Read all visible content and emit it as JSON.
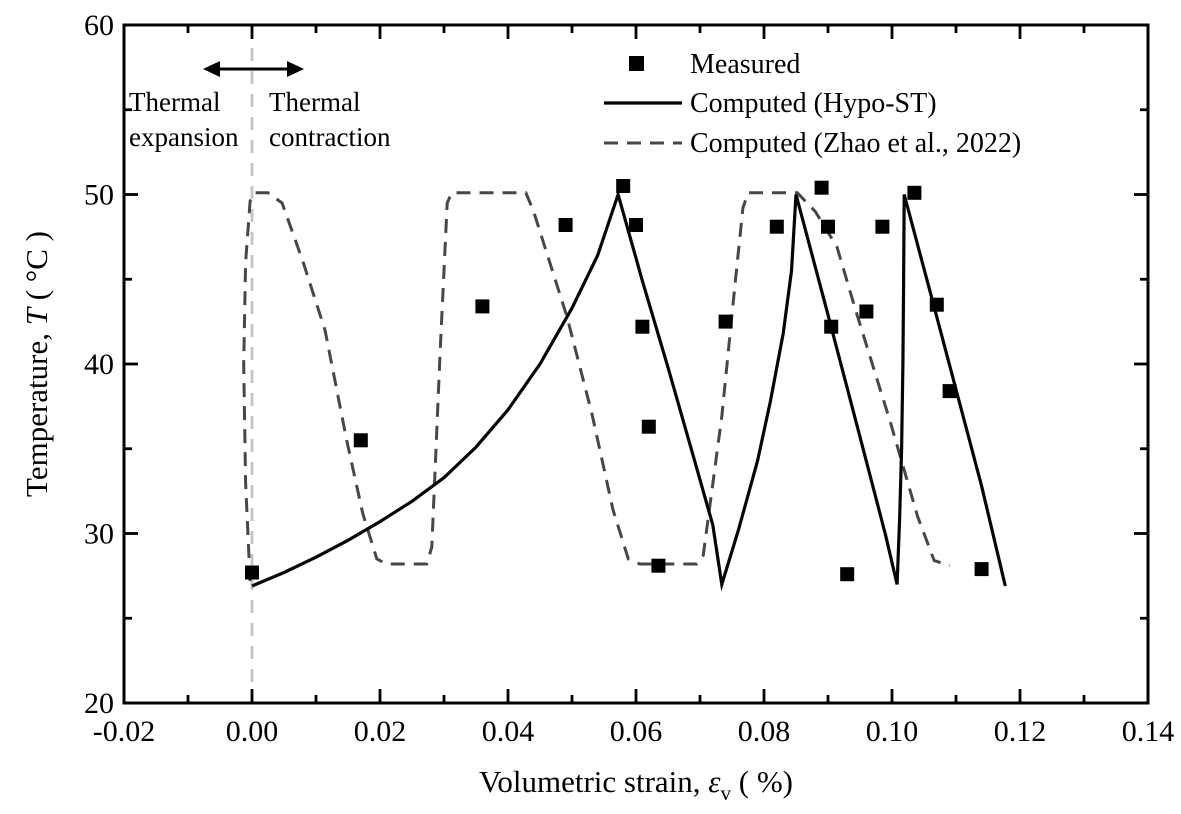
{
  "figure": {
    "background": "#ffffff"
  },
  "chart_data": {
    "type": "line+scatter",
    "title": "",
    "xlabel": {
      "prefix": "Volumetric strain, ",
      "symbol": "ε",
      "subscript": "v",
      "suffix": " ( %)"
    },
    "ylabel": {
      "prefix": "Temperature, ",
      "symbol": "T",
      "suffix": " ( °C )"
    },
    "xlim": [
      -0.02,
      0.14
    ],
    "ylim": [
      20,
      60
    ],
    "xticks": [
      -0.02,
      0.0,
      0.02,
      0.04,
      0.06,
      0.08,
      0.1,
      0.12,
      0.14
    ],
    "xtick_labels": [
      "-0.02",
      "0.00",
      "0.02",
      "0.04",
      "0.06",
      "0.08",
      "0.10",
      "0.12",
      "0.14"
    ],
    "xminor": [
      -0.01,
      0.01,
      0.03,
      0.05,
      0.07,
      0.09,
      0.11,
      0.13
    ],
    "yticks": [
      20,
      30,
      40,
      50,
      60
    ],
    "ytick_labels": [
      "20",
      "30",
      "40",
      "50",
      "60"
    ],
    "yminor": [
      25,
      35,
      45,
      55
    ],
    "grid": false,
    "legend_position": "top-center",
    "reference_line": {
      "x": 0.0,
      "color": "#c4c4c4",
      "style": "dashed"
    },
    "series": [
      {
        "name": "Measured",
        "type": "scatter",
        "marker": "square",
        "color": "#000000",
        "points": [
          [
            0.0,
            27.7
          ],
          [
            0.017,
            35.5
          ],
          [
            0.036,
            43.4
          ],
          [
            0.049,
            48.2
          ],
          [
            0.058,
            50.5
          ],
          [
            0.06,
            48.2
          ],
          [
            0.061,
            42.2
          ],
          [
            0.062,
            36.3
          ],
          [
            0.0635,
            28.1
          ],
          [
            0.074,
            42.5
          ],
          [
            0.082,
            48.1
          ],
          [
            0.089,
            50.4
          ],
          [
            0.09,
            48.1
          ],
          [
            0.0905,
            42.2
          ],
          [
            0.093,
            27.6
          ],
          [
            0.096,
            43.1
          ],
          [
            0.0985,
            48.1
          ],
          [
            0.1035,
            50.1
          ],
          [
            0.107,
            43.5
          ],
          [
            0.109,
            38.4
          ],
          [
            0.114,
            27.9
          ]
        ]
      },
      {
        "name": "Computed (Hypo-ST)",
        "type": "line",
        "style": "solid",
        "color": "#050505",
        "points": [
          [
            0.0,
            26.9
          ],
          [
            0.005,
            27.7
          ],
          [
            0.01,
            28.6
          ],
          [
            0.015,
            29.6
          ],
          [
            0.02,
            30.7
          ],
          [
            0.025,
            31.9
          ],
          [
            0.03,
            33.3
          ],
          [
            0.035,
            35.1
          ],
          [
            0.04,
            37.3
          ],
          [
            0.045,
            40.0
          ],
          [
            0.05,
            43.3
          ],
          [
            0.054,
            46.4
          ],
          [
            0.0572,
            50.0
          ],
          [
            0.061,
            44.9
          ],
          [
            0.065,
            39.8
          ],
          [
            0.069,
            34.5
          ],
          [
            0.072,
            30.5
          ],
          [
            0.0734,
            27.0
          ],
          [
            0.076,
            30.2
          ],
          [
            0.079,
            34.3
          ],
          [
            0.081,
            37.8
          ],
          [
            0.083,
            41.8
          ],
          [
            0.0843,
            45.5
          ],
          [
            0.085,
            50.0
          ],
          [
            0.09,
            42.9
          ],
          [
            0.095,
            35.7
          ],
          [
            0.099,
            29.9
          ],
          [
            0.1008,
            27.0
          ],
          [
            0.1012,
            31.0
          ],
          [
            0.1015,
            35.0
          ],
          [
            0.1017,
            40.0
          ],
          [
            0.1018,
            44.0
          ],
          [
            0.1019,
            50.0
          ],
          [
            0.106,
            44.2
          ],
          [
            0.11,
            38.5
          ],
          [
            0.114,
            32.8
          ],
          [
            0.1177,
            26.9
          ]
        ]
      },
      {
        "name": "Computed (Zhao et al., 2022)",
        "type": "line",
        "style": "dashed",
        "color": "#474747",
        "points": [
          [
            -0.0003,
            27.2
          ],
          [
            -0.001,
            33.0
          ],
          [
            -0.0013,
            40.0
          ],
          [
            -0.001,
            46.0
          ],
          [
            -0.0003,
            49.6
          ],
          [
            0.0003,
            50.1
          ],
          [
            0.0025,
            50.1
          ],
          [
            0.0047,
            49.5
          ],
          [
            0.008,
            46.0
          ],
          [
            0.0114,
            42.0
          ],
          [
            0.0148,
            35.5
          ],
          [
            0.0173,
            31.2
          ],
          [
            0.0195,
            28.5
          ],
          [
            0.021,
            28.2
          ],
          [
            0.0273,
            28.2
          ],
          [
            0.0281,
            29.2
          ],
          [
            0.0294,
            40.8
          ],
          [
            0.0305,
            49.5
          ],
          [
            0.0312,
            50.1
          ],
          [
            0.0428,
            50.1
          ],
          [
            0.044,
            49.0
          ],
          [
            0.0492,
            42.8
          ],
          [
            0.0531,
            37.1
          ],
          [
            0.0564,
            31.4
          ],
          [
            0.0588,
            28.5
          ],
          [
            0.0606,
            28.2
          ],
          [
            0.0695,
            28.2
          ],
          [
            0.0705,
            28.7
          ],
          [
            0.0734,
            36.9
          ],
          [
            0.0755,
            44.8
          ],
          [
            0.0767,
            49.2
          ],
          [
            0.0775,
            50.1
          ],
          [
            0.0852,
            50.1
          ],
          [
            0.088,
            49.0
          ],
          [
            0.0914,
            46.9
          ],
          [
            0.0943,
            43.2
          ],
          [
            0.0998,
            36.5
          ],
          [
            0.104,
            31.0
          ],
          [
            0.1066,
            28.4
          ],
          [
            0.109,
            28.1
          ]
        ]
      }
    ],
    "annotations": {
      "expansion_line1": "Thermal",
      "expansion_line2": "expansion",
      "contraction_line1": "Thermal",
      "contraction_line2": "contraction",
      "arrow": {
        "x1": -0.0075,
        "x2": 0.0078,
        "y": 57.3,
        "double_headed": true
      }
    }
  }
}
